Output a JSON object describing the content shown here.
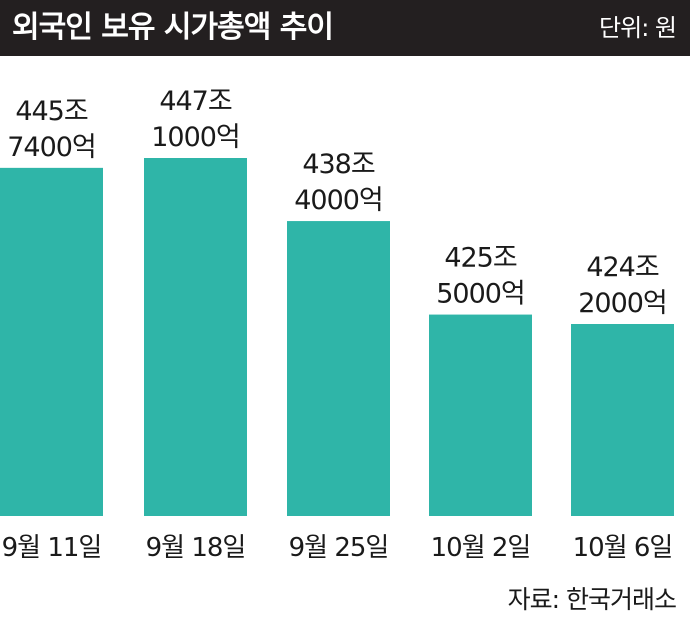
{
  "header": {
    "title": "외국인 보유 시가총액 추이",
    "unit": "단위: 원"
  },
  "source": "자료: 한국거래소",
  "colors": {
    "bar": "#2fb5a8",
    "title_bg": "#231f20"
  },
  "chart_data": {
    "type": "bar",
    "title": "외국인 보유 시가총액 추이",
    "unit": "원",
    "categories": [
      "9월 11일",
      "9월 18일",
      "9월 25일",
      "10월 2일",
      "10월 6일"
    ],
    "values": [
      445.74,
      447.1,
      438.4,
      425.5,
      424.2
    ],
    "value_unit": "조",
    "labels": [
      [
        "445조",
        "7400억"
      ],
      [
        "447조",
        "1000억"
      ],
      [
        "438조",
        "4000억"
      ],
      [
        "425조",
        "5000억"
      ],
      [
        "424조",
        "2000억"
      ]
    ]
  }
}
